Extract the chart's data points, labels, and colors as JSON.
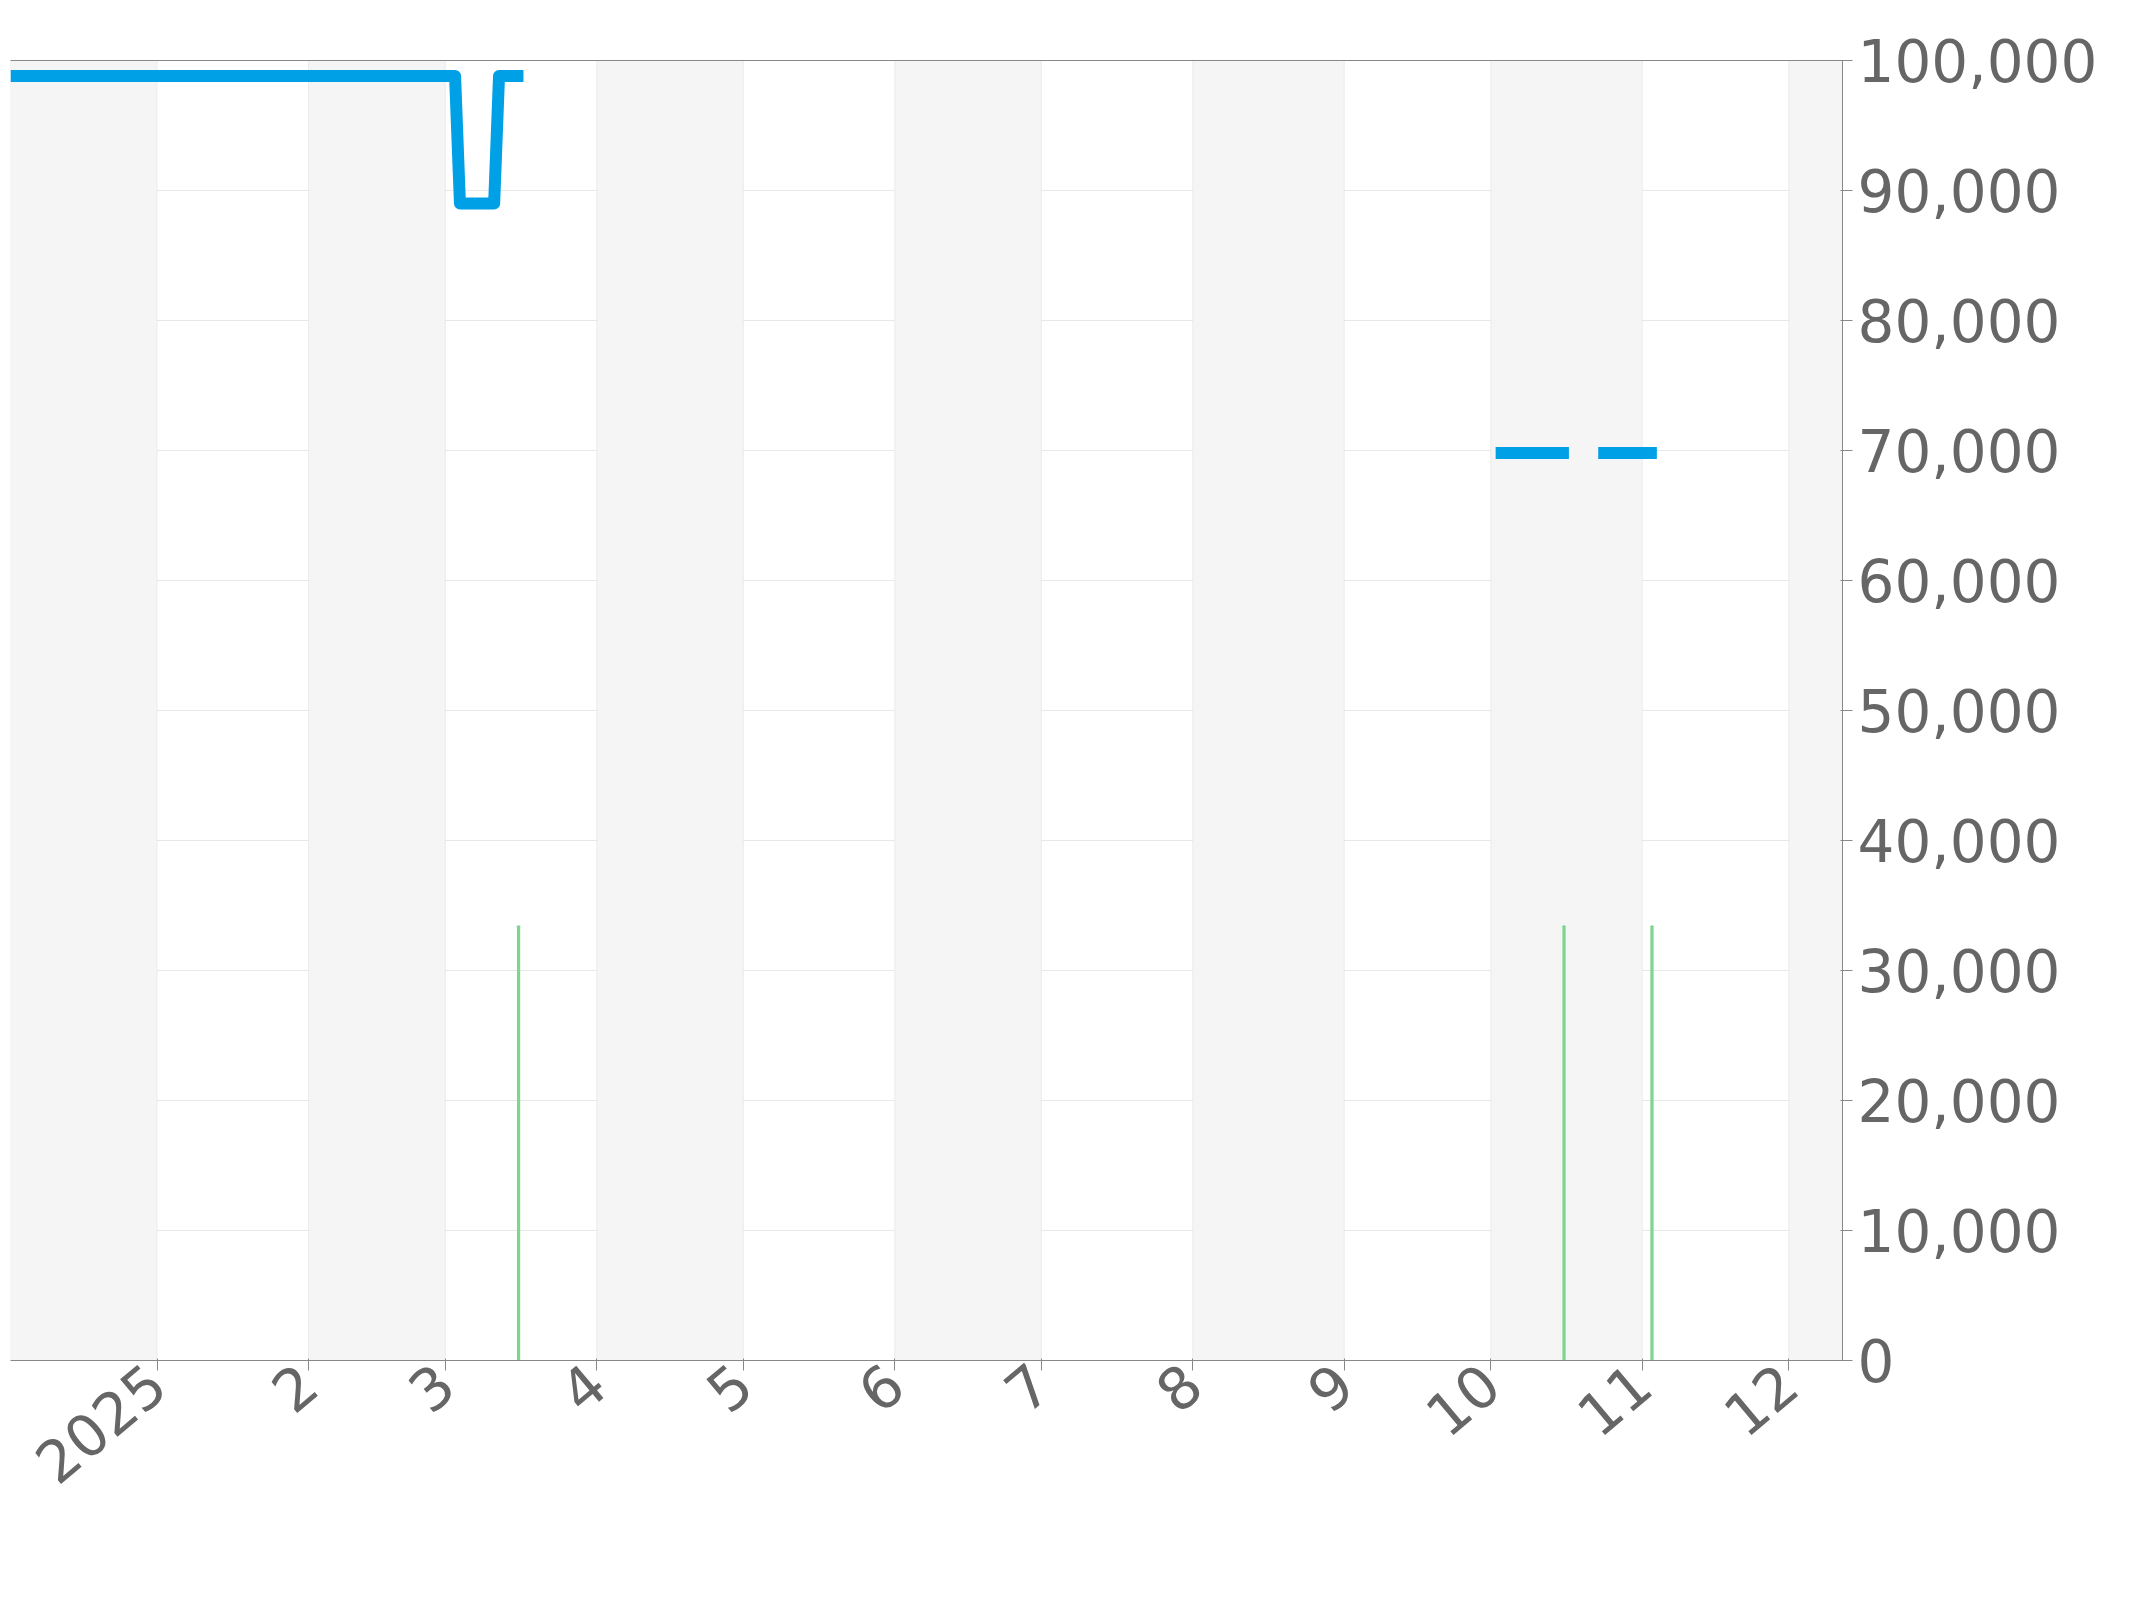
{
  "chart_data": {
    "type": "line",
    "xlim": [
      "2024-12-02",
      "2025-12-12"
    ],
    "ylim": [
      0,
      100000
    ],
    "xticks": [
      {
        "value": "2025-01-01",
        "label": "2025"
      },
      {
        "value": "2025-02-01",
        "label": "2"
      },
      {
        "value": "2025-03-01",
        "label": "3"
      },
      {
        "value": "2025-04-01",
        "label": "4"
      },
      {
        "value": "2025-05-01",
        "label": "5"
      },
      {
        "value": "2025-06-01",
        "label": "6"
      },
      {
        "value": "2025-07-01",
        "label": "7"
      },
      {
        "value": "2025-08-01",
        "label": "8"
      },
      {
        "value": "2025-09-01",
        "label": "9"
      },
      {
        "value": "2025-10-01",
        "label": "10"
      },
      {
        "value": "2025-11-01",
        "label": "11"
      },
      {
        "value": "2025-12-01",
        "label": "12"
      }
    ],
    "yticks": [
      {
        "value": 0,
        "label": "0"
      },
      {
        "value": 10000,
        "label": "10,000"
      },
      {
        "value": 20000,
        "label": "20,000"
      },
      {
        "value": 30000,
        "label": "30,000"
      },
      {
        "value": 40000,
        "label": "40,000"
      },
      {
        "value": 50000,
        "label": "50,000"
      },
      {
        "value": 60000,
        "label": "60,000"
      },
      {
        "value": 70000,
        "label": "70,000"
      },
      {
        "value": 80000,
        "label": "80,000"
      },
      {
        "value": 90000,
        "label": "90,000"
      },
      {
        "value": 100000,
        "label": "100,000"
      }
    ],
    "grid": "y",
    "series": [
      {
        "type": "bar",
        "color": "#7fd48f",
        "x": [
          "2025-03-16",
          "2025-10-16",
          "2025-11-03"
        ],
        "values": [
          33400,
          33400,
          33400
        ]
      },
      {
        "color": "#00a0e6",
        "x": [
          "2024-12-02",
          "2025-03-03",
          "2025-03-04",
          "2025-03-11",
          "2025-03-12",
          "2025-03-17",
          "2025-03-18",
          "2025-10-02",
          "2025-10-17",
          "2025-10-20",
          "2025-10-23",
          "2025-11-04"
        ],
        "values": [
          98800,
          98800,
          89000,
          89000,
          98800,
          98800,
          null,
          69800,
          69800,
          null,
          69800,
          69800
        ]
      }
    ],
    "bands": [
      {
        "axis": "x",
        "from": "2024-12-02",
        "to": "2025-01-01",
        "color": "#f5f5f5"
      },
      {
        "axis": "x",
        "from": "2025-02-01",
        "to": "2025-03-01",
        "color": "#f5f5f5"
      },
      {
        "axis": "x",
        "from": "2025-04-01",
        "to": "2025-05-01",
        "color": "#f5f5f5"
      },
      {
        "axis": "x",
        "from": "2025-06-01",
        "to": "2025-07-01",
        "color": "#f5f5f5"
      },
      {
        "axis": "x",
        "from": "2025-08-01",
        "to": "2025-09-01",
        "color": "#f5f5f5"
      },
      {
        "axis": "x",
        "from": "2025-10-01",
        "to": "2025-11-01",
        "color": "#f5f5f5"
      },
      {
        "axis": "x",
        "from": "2025-12-01",
        "to": "2025-12-12",
        "color": "#f5f5f5"
      }
    ]
  }
}
